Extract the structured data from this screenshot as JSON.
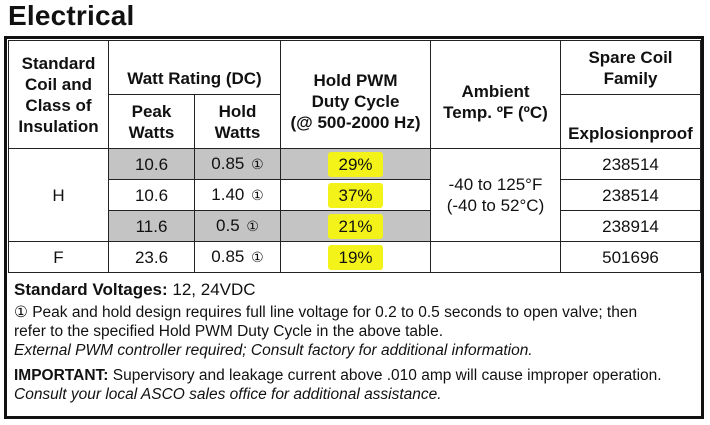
{
  "title": "Electrical",
  "headers": {
    "coil_class": [
      "Standard",
      "Coil and",
      "Class of",
      "Insulation"
    ],
    "watt_rating": "Watt Rating (DC)",
    "peak_watts": [
      "Peak",
      "Watts"
    ],
    "hold_watts": [
      "Hold",
      "Watts"
    ],
    "hold_pwm": [
      "Hold PWM",
      "Duty Cycle",
      "(@ 500-2000 Hz)"
    ],
    "ambient": [
      "Ambient",
      "Temp. ºF (ºC)"
    ],
    "spare_coil": [
      "Spare Coil",
      "Family"
    ],
    "explosionproof": "Explosionproof"
  },
  "rows": [
    {
      "peak": "10.6",
      "hold": "0.85",
      "footnote": "①",
      "duty": "29%",
      "spare": "238514"
    },
    {
      "peak": "10.6",
      "hold": "1.40",
      "footnote": "①",
      "duty": "37%",
      "spare": "238514"
    },
    {
      "peak": "11.6",
      "hold": "0.5",
      "footnote": "①",
      "duty": "21%",
      "spare": "238914"
    },
    {
      "peak": "23.6",
      "hold": "0.85",
      "footnote": "①",
      "duty": "19%",
      "spare": "501696"
    }
  ],
  "classes": {
    "h": "H",
    "f": "F"
  },
  "ambient_range": [
    "-40 to 125°F",
    "(-40 to 52°C)"
  ],
  "notes": {
    "standard_voltages_label": "Standard Voltages:",
    "standard_voltages_value": " 12, 24VDC",
    "footnote_line1": "① Peak and hold design requires full line voltage for 0.2 to 0.5 seconds to open valve; then",
    "footnote_line2": "refer to the specified Hold PWM Duty Cycle in the above table.",
    "external_pwm": "External PWM controller required; Consult factory for additional information.",
    "important_label": "IMPORTANT:",
    "important_text": " Supervisory and leakage current above .010 amp will cause improper operation.",
    "consult": "Consult your local ASCO sales office for additional assistance."
  },
  "colors": {
    "highlight": "#f3f31a",
    "grey_row": "#c4c4c4"
  }
}
